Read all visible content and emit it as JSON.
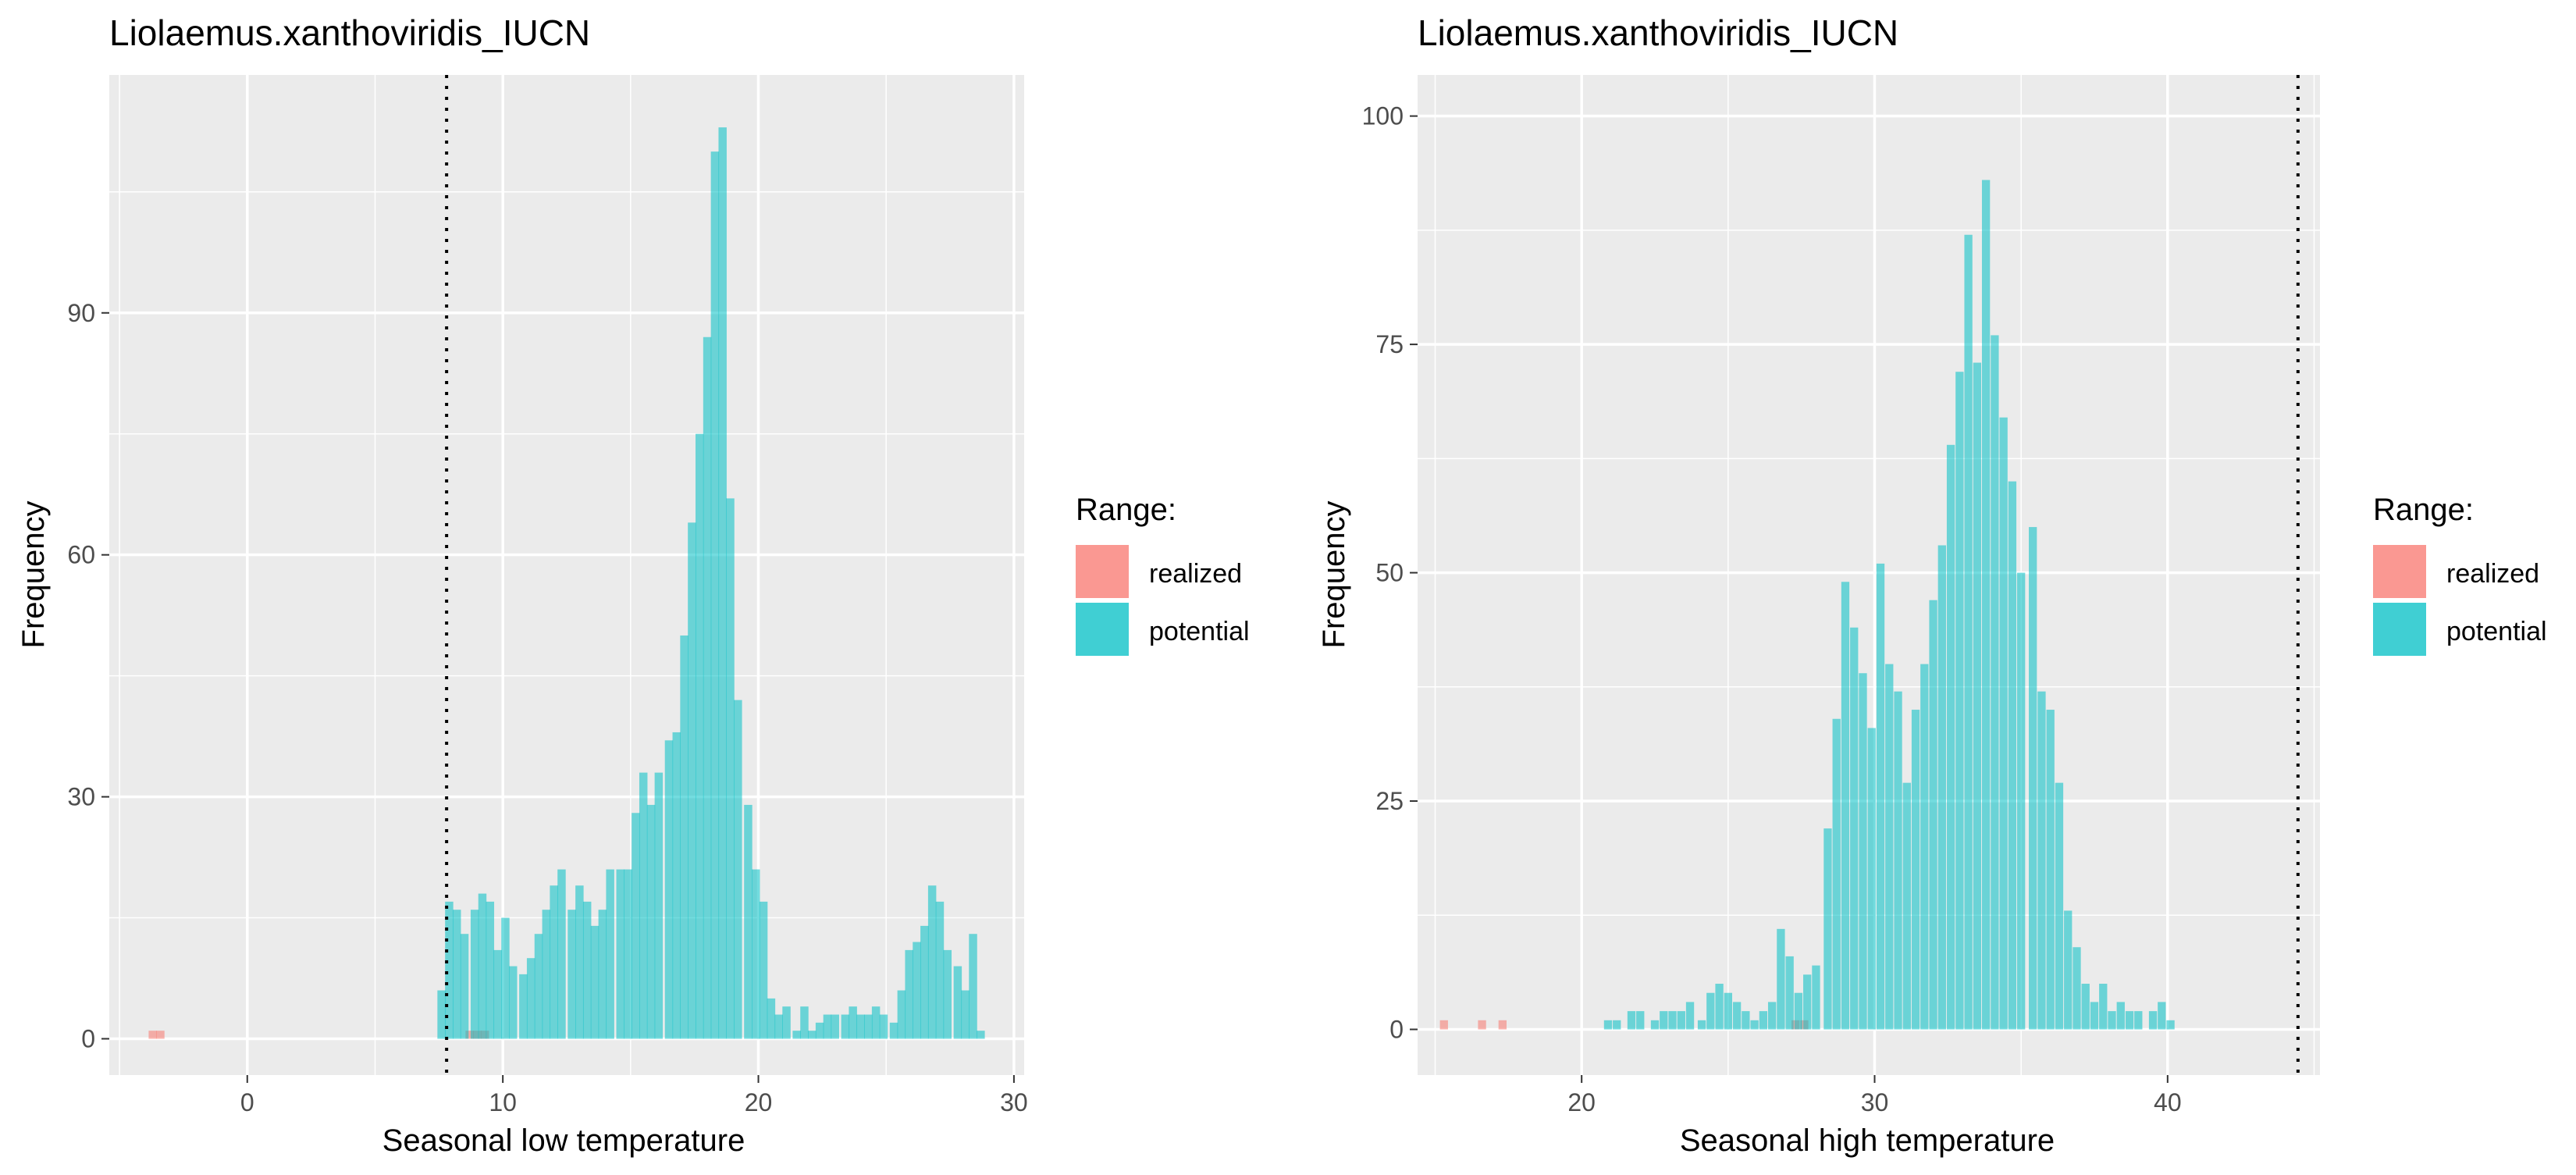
{
  "chart_data": [
    {
      "type": "bar",
      "title": "Liolaemus.xanthoviridis_IUCN",
      "xlabel": "Seasonal low temperature",
      "ylabel": "Frequency",
      "xlim": [
        -5.4,
        30.4
      ],
      "ylim": [
        -4.5,
        119.5
      ],
      "x_ticks": [
        0,
        10,
        20,
        30
      ],
      "y_ticks": [
        0,
        30,
        60,
        90
      ],
      "grid": true,
      "bin_width": 0.32,
      "vline": 7.8,
      "legend": {
        "title": "Range:",
        "position": "right",
        "entries": [
          {
            "label": "realized",
            "color": "#F8766D"
          },
          {
            "label": "potential",
            "color": "#00BFC4"
          }
        ]
      },
      "series": [
        {
          "name": "realized",
          "color": "#F8766D",
          "bins": [
            [
              -3.7,
              1
            ],
            [
              -3.4,
              1
            ],
            [
              8.7,
              1
            ],
            [
              9.0,
              1
            ],
            [
              9.3,
              1
            ]
          ]
        },
        {
          "name": "potential",
          "color": "#00BFC4",
          "bins": [
            [
              7.6,
              6
            ],
            [
              7.9,
              17
            ],
            [
              8.2,
              16
            ],
            [
              8.5,
              13
            ],
            [
              8.9,
              16
            ],
            [
              9.2,
              18
            ],
            [
              9.5,
              17
            ],
            [
              9.8,
              11
            ],
            [
              10.1,
              15
            ],
            [
              10.4,
              9
            ],
            [
              10.8,
              8
            ],
            [
              11.1,
              10
            ],
            [
              11.4,
              13
            ],
            [
              11.7,
              16
            ],
            [
              12.0,
              19
            ],
            [
              12.3,
              21
            ],
            [
              12.7,
              16
            ],
            [
              13.0,
              19
            ],
            [
              13.3,
              17
            ],
            [
              13.6,
              14
            ],
            [
              13.9,
              16
            ],
            [
              14.2,
              21
            ],
            [
              14.6,
              21
            ],
            [
              14.9,
              21
            ],
            [
              15.2,
              28
            ],
            [
              15.5,
              33
            ],
            [
              15.8,
              29
            ],
            [
              16.1,
              33
            ],
            [
              16.5,
              37
            ],
            [
              16.8,
              38
            ],
            [
              17.1,
              50
            ],
            [
              17.4,
              64
            ],
            [
              17.7,
              75
            ],
            [
              18.0,
              87
            ],
            [
              18.3,
              110
            ],
            [
              18.6,
              113
            ],
            [
              18.9,
              67
            ],
            [
              19.2,
              42
            ],
            [
              19.6,
              29
            ],
            [
              19.9,
              21
            ],
            [
              20.2,
              17
            ],
            [
              20.5,
              5
            ],
            [
              20.8,
              3
            ],
            [
              21.1,
              4
            ],
            [
              21.5,
              1
            ],
            [
              21.8,
              4
            ],
            [
              22.1,
              1
            ],
            [
              22.4,
              2
            ],
            [
              22.7,
              3
            ],
            [
              23.0,
              3
            ],
            [
              23.4,
              3
            ],
            [
              23.7,
              4
            ],
            [
              24.0,
              3
            ],
            [
              24.3,
              3
            ],
            [
              24.6,
              4
            ],
            [
              24.9,
              3
            ],
            [
              25.3,
              2
            ],
            [
              25.6,
              6
            ],
            [
              25.9,
              11
            ],
            [
              26.2,
              12
            ],
            [
              26.5,
              14
            ],
            [
              26.8,
              19
            ],
            [
              27.1,
              17
            ],
            [
              27.4,
              11
            ],
            [
              27.8,
              9
            ],
            [
              28.1,
              6
            ],
            [
              28.4,
              13
            ],
            [
              28.7,
              1
            ]
          ]
        }
      ]
    },
    {
      "type": "bar",
      "title": "Liolaemus.xanthoviridis_IUCN",
      "xlabel": "Seasonal high temperature",
      "ylabel": "Frequency",
      "xlim": [
        14.4,
        45.2
      ],
      "ylim": [
        -5,
        104.5
      ],
      "x_ticks": [
        20,
        30,
        40
      ],
      "y_ticks": [
        0,
        25,
        50,
        75,
        100
      ],
      "grid": true,
      "bin_width": 0.275,
      "vline": 44.45,
      "legend": {
        "title": "Range:",
        "position": "right",
        "entries": [
          {
            "label": "realized",
            "color": "#F8766D"
          },
          {
            "label": "potential",
            "color": "#00BFC4"
          }
        ]
      },
      "series": [
        {
          "name": "realized",
          "color": "#F8766D",
          "bins": [
            [
              15.3,
              1
            ],
            [
              16.6,
              1
            ],
            [
              17.3,
              1
            ],
            [
              27.3,
              1
            ],
            [
              27.6,
              1
            ]
          ]
        },
        {
          "name": "potential",
          "color": "#00BFC4",
          "bins": [
            [
              20.9,
              1
            ],
            [
              21.2,
              1
            ],
            [
              21.7,
              2
            ],
            [
              22.0,
              2
            ],
            [
              22.5,
              1
            ],
            [
              22.8,
              2
            ],
            [
              23.1,
              2
            ],
            [
              23.4,
              2
            ],
            [
              23.7,
              3
            ],
            [
              24.1,
              1
            ],
            [
              24.4,
              4
            ],
            [
              24.7,
              5
            ],
            [
              25.0,
              4
            ],
            [
              25.3,
              3
            ],
            [
              25.6,
              2
            ],
            [
              25.9,
              1
            ],
            [
              26.2,
              2
            ],
            [
              26.5,
              3
            ],
            [
              26.8,
              11
            ],
            [
              27.1,
              8
            ],
            [
              27.4,
              4
            ],
            [
              27.7,
              6
            ],
            [
              28.0,
              7
            ],
            [
              28.4,
              22
            ],
            [
              28.7,
              34
            ],
            [
              29.0,
              49
            ],
            [
              29.3,
              44
            ],
            [
              29.6,
              39
            ],
            [
              29.9,
              33
            ],
            [
              30.2,
              51
            ],
            [
              30.5,
              40
            ],
            [
              30.8,
              37
            ],
            [
              31.1,
              27
            ],
            [
              31.4,
              35
            ],
            [
              31.7,
              40
            ],
            [
              32.0,
              47
            ],
            [
              32.3,
              53
            ],
            [
              32.6,
              64
            ],
            [
              32.9,
              72
            ],
            [
              33.2,
              87
            ],
            [
              33.5,
              73
            ],
            [
              33.8,
              93
            ],
            [
              34.1,
              76
            ],
            [
              34.4,
              67
            ],
            [
              34.7,
              60
            ],
            [
              35.0,
              50
            ],
            [
              35.4,
              55
            ],
            [
              35.7,
              37
            ],
            [
              36.0,
              35
            ],
            [
              36.3,
              27
            ],
            [
              36.6,
              13
            ],
            [
              36.9,
              9
            ],
            [
              37.2,
              5
            ],
            [
              37.5,
              3
            ],
            [
              37.8,
              5
            ],
            [
              38.1,
              2
            ],
            [
              38.4,
              3
            ],
            [
              38.7,
              2
            ],
            [
              39.0,
              2
            ],
            [
              39.5,
              2
            ],
            [
              39.8,
              3
            ],
            [
              40.1,
              1
            ]
          ]
        }
      ]
    }
  ]
}
